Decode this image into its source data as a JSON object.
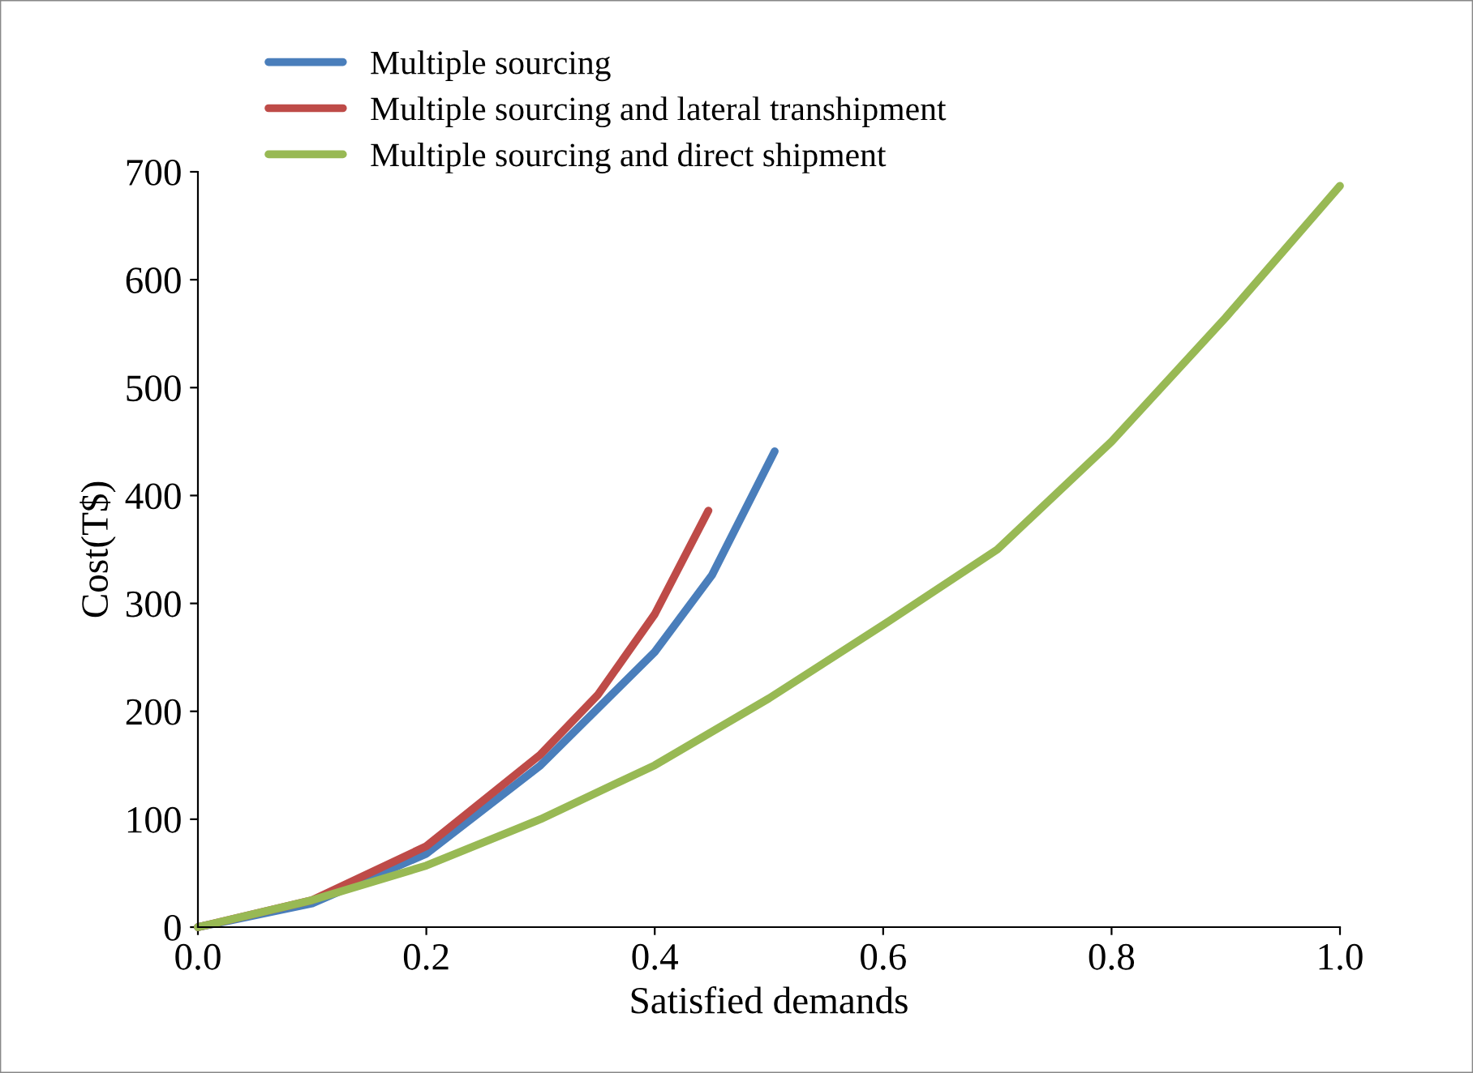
{
  "chart_data": {
    "type": "line",
    "xlabel": "Satisfied demands",
    "ylabel": "Cost(T$)",
    "xlim": [
      0,
      1
    ],
    "ylim": [
      0,
      700
    ],
    "xticks": [
      {
        "value": 0,
        "label": "0.0"
      },
      {
        "value": 0.2,
        "label": "0.2"
      },
      {
        "value": 0.4,
        "label": "0.4"
      },
      {
        "value": 0.6,
        "label": "0.6"
      },
      {
        "value": 0.8,
        "label": "0.8"
      },
      {
        "value": 1,
        "label": "1.0"
      }
    ],
    "yticks": [
      0,
      100,
      200,
      300,
      400,
      500,
      600,
      700
    ],
    "grid": false,
    "legend": "top",
    "marker": "none",
    "line_style": "solid",
    "series": [
      {
        "name": "Multiple sourcing",
        "color": "#4a7ebb",
        "x": [
          0,
          0.1,
          0.2,
          0.3,
          0.4,
          0.45,
          0.505
        ],
        "values": [
          0,
          22,
          68,
          150,
          255,
          326,
          441
        ]
      },
      {
        "name": "Multiple sourcing and lateral transhipment",
        "color": "#be4b48",
        "x": [
          0,
          0.1,
          0.2,
          0.3,
          0.35,
          0.4,
          0.447
        ],
        "values": [
          0,
          25,
          75,
          160,
          215,
          290,
          386
        ]
      },
      {
        "name": "Multiple sourcing and direct shipment",
        "color": "#98b954",
        "x": [
          0,
          0.1,
          0.2,
          0.3,
          0.4,
          0.5,
          0.6,
          0.7,
          0.8,
          0.9,
          1.0
        ],
        "values": [
          0,
          25,
          57,
          100,
          150,
          212,
          280,
          350,
          450,
          565,
          687
        ]
      }
    ]
  }
}
